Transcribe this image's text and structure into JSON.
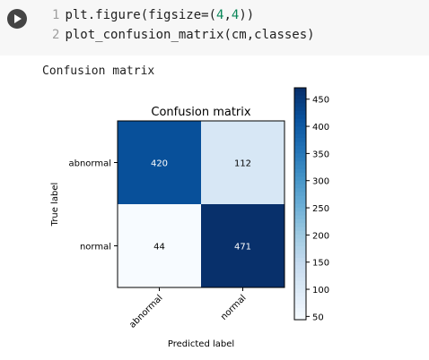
{
  "cell": {
    "lines": [
      {
        "no": "1",
        "pre": "plt.figure(figsize=(",
        "a": "4",
        "mid": ",",
        "b": "4",
        "post": "))"
      },
      {
        "no": "2",
        "pre": "plot_confusion_matrix(cm,classes)",
        "a": "",
        "mid": "",
        "b": "",
        "post": ""
      }
    ]
  },
  "output": {
    "text": "Confusion matrix"
  },
  "chart_data": {
    "type": "heatmap",
    "title": "Confusion matrix",
    "xlabel": "Predicted label",
    "ylabel": "True label",
    "x_categories": [
      "abnormal",
      "normal"
    ],
    "y_categories": [
      "abnormal",
      "normal"
    ],
    "values": [
      [
        420,
        112
      ],
      [
        44,
        471
      ]
    ],
    "colormap": "Blues",
    "colorbar": {
      "min": 44,
      "max": 471,
      "ticks": [
        50,
        100,
        150,
        200,
        250,
        300,
        350,
        400,
        450
      ]
    }
  }
}
